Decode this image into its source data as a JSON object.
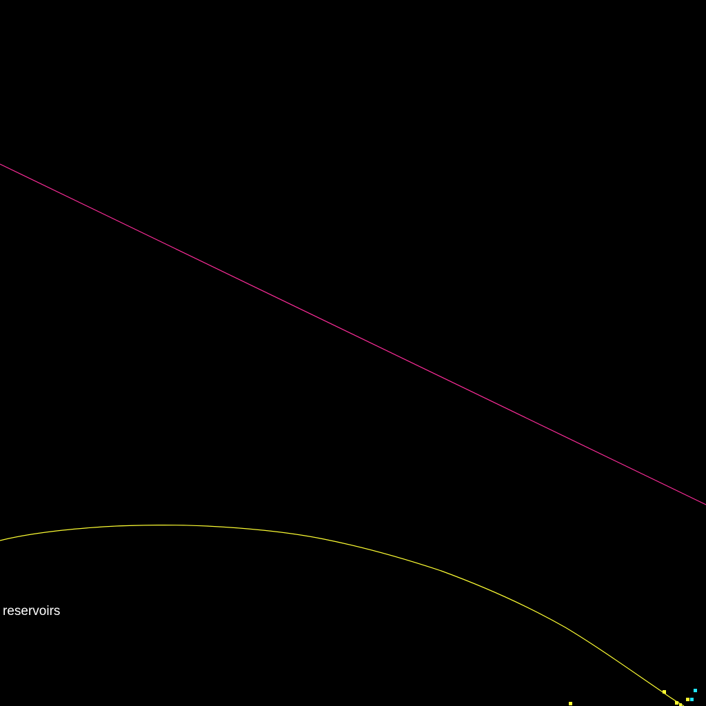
{
  "map": {
    "background_color": "#000000",
    "features": [
      {
        "name": "magenta-line",
        "color": "#ff2d9b",
        "kind": "line"
      },
      {
        "name": "yellow-curve",
        "color": "#ffff33",
        "kind": "line"
      },
      {
        "name": "yellow-markers",
        "color": "#ffff33",
        "kind": "points"
      },
      {
        "name": "cyan-markers",
        "color": "#22e5ff",
        "kind": "points"
      }
    ],
    "label": {
      "text": "reservoirs",
      "color": "#ffffff"
    }
  }
}
